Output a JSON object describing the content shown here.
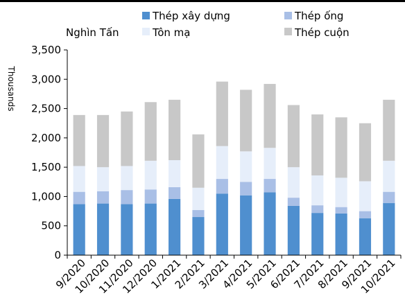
{
  "chart_data": {
    "type": "bar",
    "stacked": true,
    "unit_label": "Nghìn Tấn",
    "ylabel": "Thousands",
    "xlabel": "",
    "ylim": [
      0,
      3500
    ],
    "yticks": [
      0,
      500,
      1000,
      1500,
      2000,
      2500,
      3000,
      3500
    ],
    "ytick_labels": [
      "0",
      "500",
      "1,000",
      "1,500",
      "2,000",
      "2,500",
      "3,000",
      "3,500"
    ],
    "grid": false,
    "legend_position": "top-right",
    "categories": [
      "9/2020",
      "10/2020",
      "11/2020",
      "12/2020",
      "1/2021",
      "2/2021",
      "3/2021",
      "4/2021",
      "5/2021",
      "6/2021",
      "7/2021",
      "8/2021",
      "9/2021",
      "10/2021"
    ],
    "series": [
      {
        "name": "Thép xây dựng",
        "color": "#4f8fcf",
        "values": [
          870,
          880,
          870,
          880,
          960,
          650,
          1050,
          1020,
          1070,
          840,
          720,
          710,
          630,
          890
        ]
      },
      {
        "name": "Thép ống",
        "color": "#a9bfe6",
        "values": [
          210,
          210,
          240,
          240,
          200,
          120,
          250,
          230,
          230,
          140,
          130,
          110,
          120,
          190
        ]
      },
      {
        "name": "Tôn mạ",
        "color": "#e6eefa",
        "values": [
          440,
          410,
          410,
          490,
          460,
          380,
          560,
          520,
          530,
          520,
          510,
          500,
          510,
          530
        ]
      },
      {
        "name": "Thép cuộn",
        "color": "#c8c8c8",
        "values": [
          870,
          890,
          930,
          1000,
          1030,
          910,
          1100,
          1050,
          1090,
          1060,
          1040,
          1030,
          990,
          1040
        ]
      }
    ]
  }
}
